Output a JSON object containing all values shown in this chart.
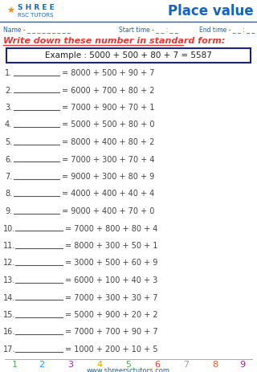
{
  "title": "Place value",
  "logo_text1": "SHREE",
  "logo_text2": "RSC TUTORS",
  "name_label": "Name - _ _ _ _ _ _ _ _ _",
  "start_label": "Start time - _ _ : _ _",
  "end_label": "End time - _ _ : _ _",
  "instruction": "Write down these number in standard form:",
  "example": "Example : 5000 + 500 + 80 + 7 = 5587",
  "problems": [
    "= 8000 + 500 + 90 + 7",
    "= 6000 + 700 + 80 + 2",
    "= 7000 + 900 + 70 + 1",
    "= 5000 + 500 + 80 + 0",
    "= 8000 + 400 + 80 + 2",
    "= 7000 + 300 + 70 + 4",
    "= 9000 + 300 + 80 + 9",
    "= 4000 + 400 + 40 + 4",
    "= 9000 + 400 + 70 + 0",
    "= 7000 + 800 + 80 + 4",
    "= 8000 + 300 + 50 + 1",
    "= 3000 + 500 + 60 + 9",
    "= 6000 + 100 + 40 + 3",
    "= 7000 + 300 + 30 + 7",
    "= 5000 + 900 + 20 + 2",
    "= 7000 + 700 + 90 + 7",
    "= 1000 + 200 + 10 + 5"
  ],
  "footer_numbers": [
    "1",
    "2",
    "3",
    "4",
    "5",
    "6",
    "7",
    "8",
    "9"
  ],
  "footer_colors": [
    "#4CAF50",
    "#2196F3",
    "#9C27B0",
    "#FF9800",
    "#4CAF50",
    "#F44336",
    "#9E9E9E",
    "#FF5722",
    "#9C27B0"
  ],
  "website": "www.shreersctutors.com",
  "bg_color": "#ffffff",
  "title_color": "#1565C0",
  "instruction_color": "#e53935",
  "header_info_color": "#1565C0",
  "problem_color": "#424242",
  "number_color": "#424242",
  "example_border_color": "#1a237e",
  "logo_line_color": "#1565C0",
  "footer_line_color": "#9E9E9E"
}
